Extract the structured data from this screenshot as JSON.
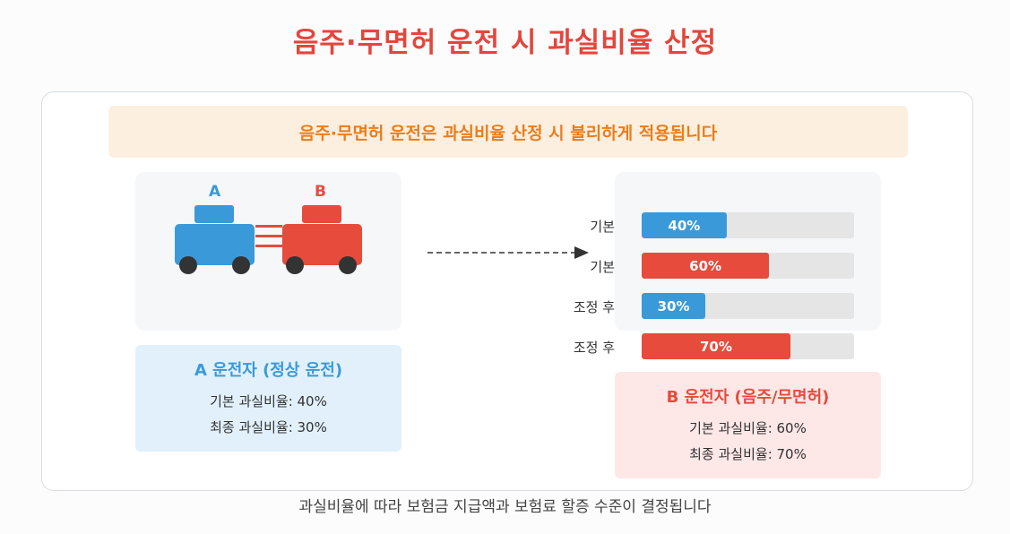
{
  "title": "음주·무면허 운전 시 과실비율 산정",
  "banner": "음주·무면허 운전은 과실비율 산정 시 불리하게 적용됩니다",
  "cars": {
    "a": {
      "label": "A",
      "color": "#3a9ad9"
    },
    "b": {
      "label": "B",
      "color": "#e64b3c"
    }
  },
  "bars": [
    {
      "label": "기본",
      "value": 40,
      "text": "40%",
      "color": "#3a9ad9"
    },
    {
      "label": "기본",
      "value": 60,
      "text": "60%",
      "color": "#e64b3c"
    },
    {
      "label": "조정 후",
      "value": 30,
      "text": "30%",
      "color": "#3a9ad9"
    },
    {
      "label": "조정 후",
      "value": 70,
      "text": "70%",
      "color": "#e64b3c"
    }
  ],
  "driver_a": {
    "heading": "A 운전자 (정상 운전)",
    "base": "기본 과실비율: 40%",
    "final": "최종 과실비율: 30%",
    "color": "#3a9ad9"
  },
  "driver_b": {
    "heading": "B 운전자 (음주/무면허)",
    "base": "기본 과실비율: 60%",
    "final": "최종 과실비율: 70%",
    "color": "#e64b3c"
  },
  "footer": "과실비율에 따라 보험금 지급액과 보험료 할증 수준이 결정됩니다"
}
